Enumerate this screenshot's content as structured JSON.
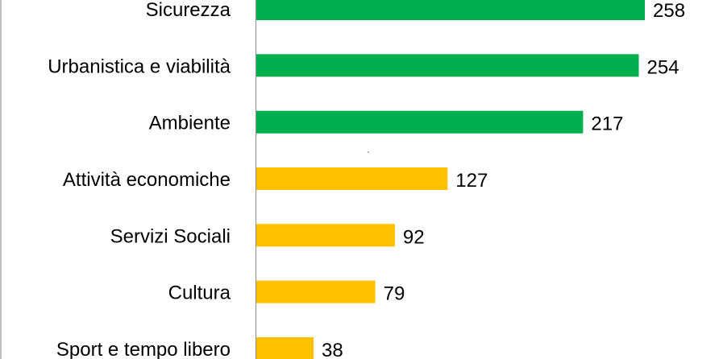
{
  "chart_data": {
    "type": "bar",
    "orientation": "horizontal",
    "categories": [
      "Sicurezza",
      "Urbanistica e viabilità",
      "Ambiente",
      "Attività economiche",
      "Servizi Sociali",
      "Cultura",
      "Sport e tempo libero"
    ],
    "values": [
      258,
      254,
      217,
      127,
      92,
      79,
      38
    ],
    "bar_colors": [
      "#00b050",
      "#00b050",
      "#00b050",
      "#ffc000",
      "#ffc000",
      "#ffc000",
      "#ffc000"
    ],
    "data_labels": true,
    "grid": false,
    "legend": "none",
    "xlim": [
      0,
      300
    ]
  }
}
